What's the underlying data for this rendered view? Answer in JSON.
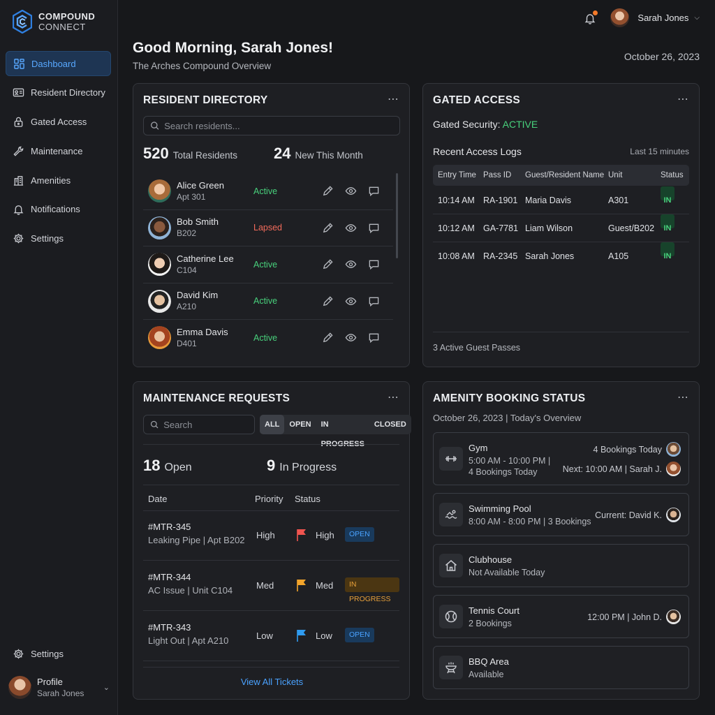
{
  "brand": {
    "line1": "COMPOUND",
    "line2": "CONNECT"
  },
  "sidebar": {
    "items": [
      {
        "label": "Dashboard",
        "icon": "dashboard-icon",
        "active": true
      },
      {
        "label": "Resident Directory",
        "icon": "id-card-icon"
      },
      {
        "label": "Gated Access",
        "icon": "lock-icon"
      },
      {
        "label": "Maintenance",
        "icon": "wrench-icon"
      },
      {
        "label": "Amenities",
        "icon": "building-icon"
      },
      {
        "label": "Notifications",
        "icon": "bell-icon"
      },
      {
        "label": "Settings",
        "icon": "gear-icon"
      }
    ],
    "bottom_settings": "Settings",
    "profile": {
      "title": "Profile",
      "name": "Sarah Jones"
    }
  },
  "topbar": {
    "user_name": "Sarah Jones"
  },
  "header": {
    "greeting": "Good Morning, Sarah Jones!",
    "subtitle": "The Arches Compound Overview",
    "date": "October 26, 2023"
  },
  "resident_directory": {
    "title": "RESIDENT DIRECTORY",
    "search_placeholder": "Search residents...",
    "total_value": "520",
    "total_label": "Total Residents",
    "new_value": "24",
    "new_label": "New This Month",
    "residents": [
      {
        "name": "Alice Green",
        "unit": "Apt 301",
        "status": "Active"
      },
      {
        "name": "Bob Smith",
        "unit": "B202",
        "status": "Lapsed"
      },
      {
        "name": "Catherine Lee",
        "unit": "C104",
        "status": "Active"
      },
      {
        "name": "David Kim",
        "unit": "A210",
        "status": "Active"
      },
      {
        "name": "Emma Davis",
        "unit": "D401",
        "status": "Active"
      }
    ]
  },
  "gated_access": {
    "title": "GATED ACCESS",
    "security_label": "Gated Security:",
    "security_value": "ACTIVE",
    "logs_title": "Recent Access Logs",
    "logs_range": "Last 15 minutes",
    "columns": [
      "Entry Time",
      "Pass ID",
      "Guest/Resident Name",
      "Unit",
      "Status"
    ],
    "logs": [
      {
        "time": "10:14 AM",
        "pass": "RA-1901",
        "name": "Maria Davis",
        "unit": "A301",
        "status": "IN"
      },
      {
        "time": "10:12 AM",
        "pass": "GA-7781",
        "name": "Liam Wilson",
        "unit": "Guest/B202",
        "status": "IN"
      },
      {
        "time": "10:08 AM",
        "pass": "RA-2345",
        "name": "Sarah Jones",
        "unit": "A105",
        "status": "IN"
      }
    ],
    "footer": "3 Active Guest Passes"
  },
  "maintenance": {
    "title": "MAINTENANCE REQUESTS",
    "search_placeholder": "Search",
    "filters": [
      "ALL",
      "OPEN",
      "IN PROGRESS",
      "CLOSED"
    ],
    "open_value": "18",
    "open_label": "Open",
    "progress_value": "9",
    "progress_label": "In Progress",
    "columns": [
      "Date",
      "Priority",
      "Status"
    ],
    "tickets": [
      {
        "id": "#MTR-345",
        "desc": "Leaking Pipe | Apt B202",
        "priority": "High",
        "flag_label": "High",
        "flag_color": "#f0544f",
        "tag": "OPEN"
      },
      {
        "id": "#MTR-344",
        "desc": "AC Issue | Unit C104",
        "priority": "Med",
        "flag_label": "Med",
        "flag_color": "#f2a42b",
        "tag": "IN PROGRESS"
      },
      {
        "id": "#MTR-343",
        "desc": "Light Out | Apt A210",
        "priority": "Low",
        "flag_label": "Low",
        "flag_color": "#2f9bf0",
        "tag": "OPEN"
      }
    ],
    "view_all": "View All Tickets"
  },
  "amenities": {
    "title": "AMENITY BOOKING STATUS",
    "subtitle": "October 26, 2023 | Today's Overview",
    "items": [
      {
        "name": "Gym",
        "sub1": "5:00 AM - 10:00 PM |",
        "sub2": "4 Bookings Today",
        "right1": "4 Bookings Today",
        "right2": "Next: 10:00 AM | Sarah J."
      },
      {
        "name": "Swimming Pool",
        "sub1": "8:00 AM - 8:00 PM | 3 Bookings",
        "right1": "Current: David K."
      },
      {
        "name": "Clubhouse",
        "sub1": "Not Available Today"
      },
      {
        "name": "Tennis Court",
        "sub1": "2 Bookings",
        "right1": "12:00 PM | John D."
      },
      {
        "name": "BBQ Area",
        "sub1": "Available"
      }
    ]
  },
  "colors": {
    "accent": "#58a8ff",
    "active_green": "#48d17c",
    "lapsed_red": "#f36b5b",
    "notification_dot": "#f47a2a"
  }
}
